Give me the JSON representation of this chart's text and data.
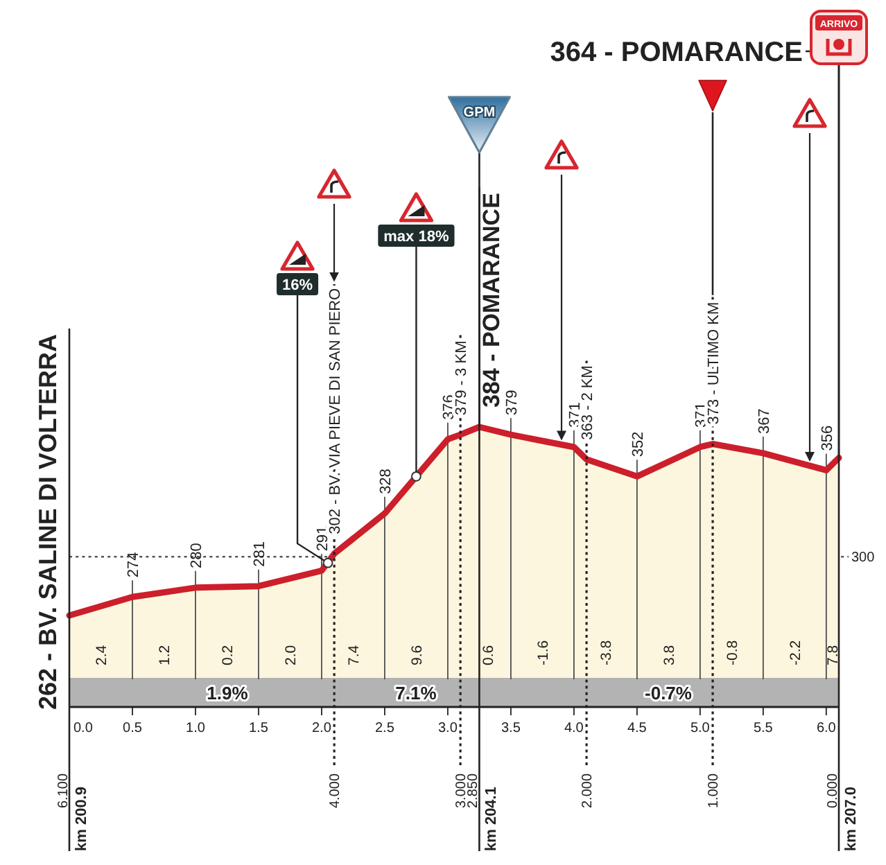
{
  "chart_data": {
    "type": "area",
    "x": [
      0,
      0.5,
      1,
      1.5,
      2,
      2.1,
      2.5,
      3,
      3.1,
      3.25,
      3.5,
      4,
      4.1,
      4.5,
      5,
      5.1,
      5.5,
      6,
      6.1
    ],
    "values": [
      262,
      274,
      280,
      281,
      291,
      302,
      328,
      376,
      379,
      384,
      379,
      371,
      363,
      352,
      371,
      373,
      367,
      356,
      364
    ],
    "value_labels": [
      "262 - BV. SALINE DI VOLTERRA",
      "274",
      "280",
      "281",
      "291",
      "302 - BV. VIA PIEVE DI SAN PIERO",
      "328",
      "376",
      "379 - 3 KM",
      "384 - POMARANCE",
      "379",
      "371",
      "363 - 2 KM",
      "352",
      "371",
      "373 - ULTIMO KM",
      "367",
      "356",
      null
    ],
    "color": "#fcf6df",
    "xlim": [
      0,
      6.1
    ],
    "xticks": [
      {
        "value": 0,
        "label": "0.0"
      },
      0.5,
      {
        "value": 1,
        "label": "1.0"
      },
      1.5,
      {
        "value": 2,
        "label": "2.0"
      },
      2.5,
      {
        "value": 3,
        "label": "3.0"
      },
      3.5,
      {
        "value": 4,
        "label": "4.0"
      },
      4.5,
      {
        "value": 5,
        "label": "5.0"
      },
      5.5,
      {
        "value": 6,
        "label": "6.0"
      }
    ],
    "x2lim": [
      6.1,
      0
    ],
    "x2ticks": [
      {
        "value": 6.1,
        "label": "6.100"
      },
      {
        "value": 4,
        "label": "4.000"
      },
      {
        "value": 3,
        "label": "3.000"
      },
      {
        "value": 2.85,
        "label": "2.850"
      },
      {
        "value": 2,
        "label": "2.000"
      },
      {
        "value": 1,
        "label": "1.000"
      },
      {
        "value": 0,
        "label": "0.000"
      }
    ],
    "ref_lines": [
      {
        "axis": "y",
        "value": 300,
        "label": "300",
        "line_style": "dotted"
      },
      {
        "axis": "x",
        "value": 0,
        "label": "km 200.9",
        "line_style": "solid"
      },
      {
        "axis": "x",
        "value": 2.1,
        "line_style": "dotted"
      },
      {
        "axis": "x",
        "value": 3.1,
        "line_style": "dotted"
      },
      {
        "axis": "x",
        "value": 3.25,
        "label": "km 204.1",
        "line_style": "solid"
      },
      {
        "axis": "x",
        "value": 4.1,
        "line_style": "dotted"
      },
      {
        "axis": "x",
        "value": 5.1,
        "line_style": "dotted"
      },
      {
        "axis": "x",
        "value": 6.1,
        "label": "km 207.0",
        "line_style": "solid"
      }
    ],
    "annotations": [
      "2.4",
      "1.2",
      "0.2",
      "2.0",
      "7.4",
      "9.6",
      "0.6",
      "-1.6",
      "-3.8",
      "3.8",
      "-0.8",
      "-2.2",
      "7.8",
      "1.9%",
      "7.1%",
      "-0.7%",
      {
        "text": "16%",
        "x": 2.05,
        "y": 296
      },
      {
        "text": "max 18%",
        "x": 2.75,
        "y": 352
      },
      {
        "text": "GPM",
        "x": 3.25,
        "y": 384
      },
      {
        "text": "ARRIVO",
        "x": 6.1,
        "y": 364
      },
      {
        "text": "364 - POMARANCE",
        "x": 6.1,
        "y": 364
      }
    ]
  }
}
